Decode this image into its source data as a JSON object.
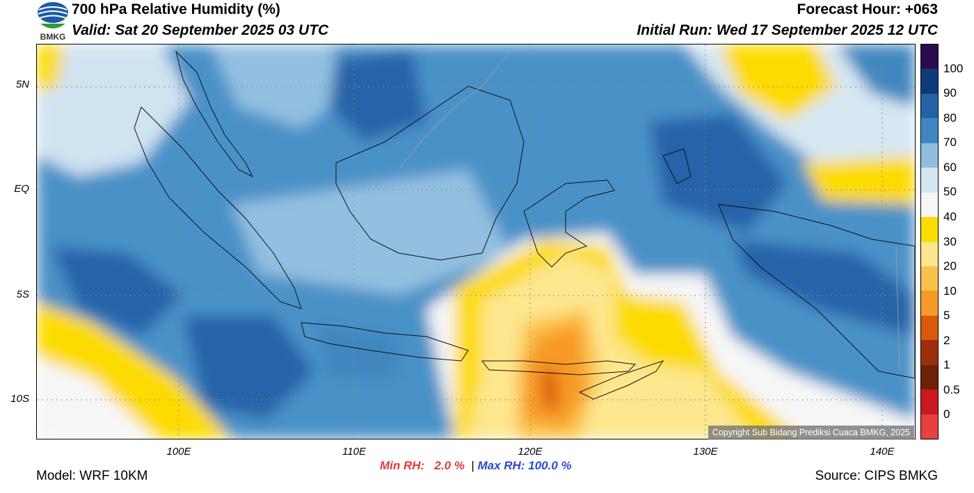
{
  "header": {
    "title": "700 hPa Relative Humidity (%)",
    "valid": "Valid: Sat 20 September 2025 03 UTC",
    "forecast_hour": "Forecast Hour: +063",
    "initial_run": "Initial Run: Wed 17 September 2025 12 UTC"
  },
  "logo": {
    "text": "BMKG",
    "icon": "bmkg-logo-icon"
  },
  "map": {
    "lat_labels": [
      "5N",
      "EQ",
      "5S",
      "10S"
    ],
    "lon_labels": [
      "100E",
      "110E",
      "120E",
      "130E",
      "140E"
    ],
    "copyright": "Copyright Sub Bidang Prediksi Cuaca BMKG, 2025"
  },
  "colorbar": {
    "labels": [
      "100",
      "90",
      "80",
      "70",
      "60",
      "50",
      "40",
      "30",
      "20",
      "10",
      "5",
      "2",
      "1",
      "0.5",
      "0"
    ],
    "colors": [
      "#2d0a4e",
      "#0f3a78",
      "#2563a8",
      "#3f87c0",
      "#90bde0",
      "#d4e6f2",
      "#f6f6f6",
      "#fcdb00",
      "#fde68d",
      "#fbc24a",
      "#f79a28",
      "#d85a0a",
      "#9b2f0c",
      "#6e2008",
      "#c81a1f",
      "#e84040"
    ]
  },
  "stats": {
    "min_label": "Min RH:",
    "min_value": "2.0 %",
    "separator": "|",
    "max_label": "Max RH:",
    "max_value": "100.0 %"
  },
  "footer": {
    "model": "Model: WRF 10KM",
    "source": "Source: CIPS BMKG"
  }
}
